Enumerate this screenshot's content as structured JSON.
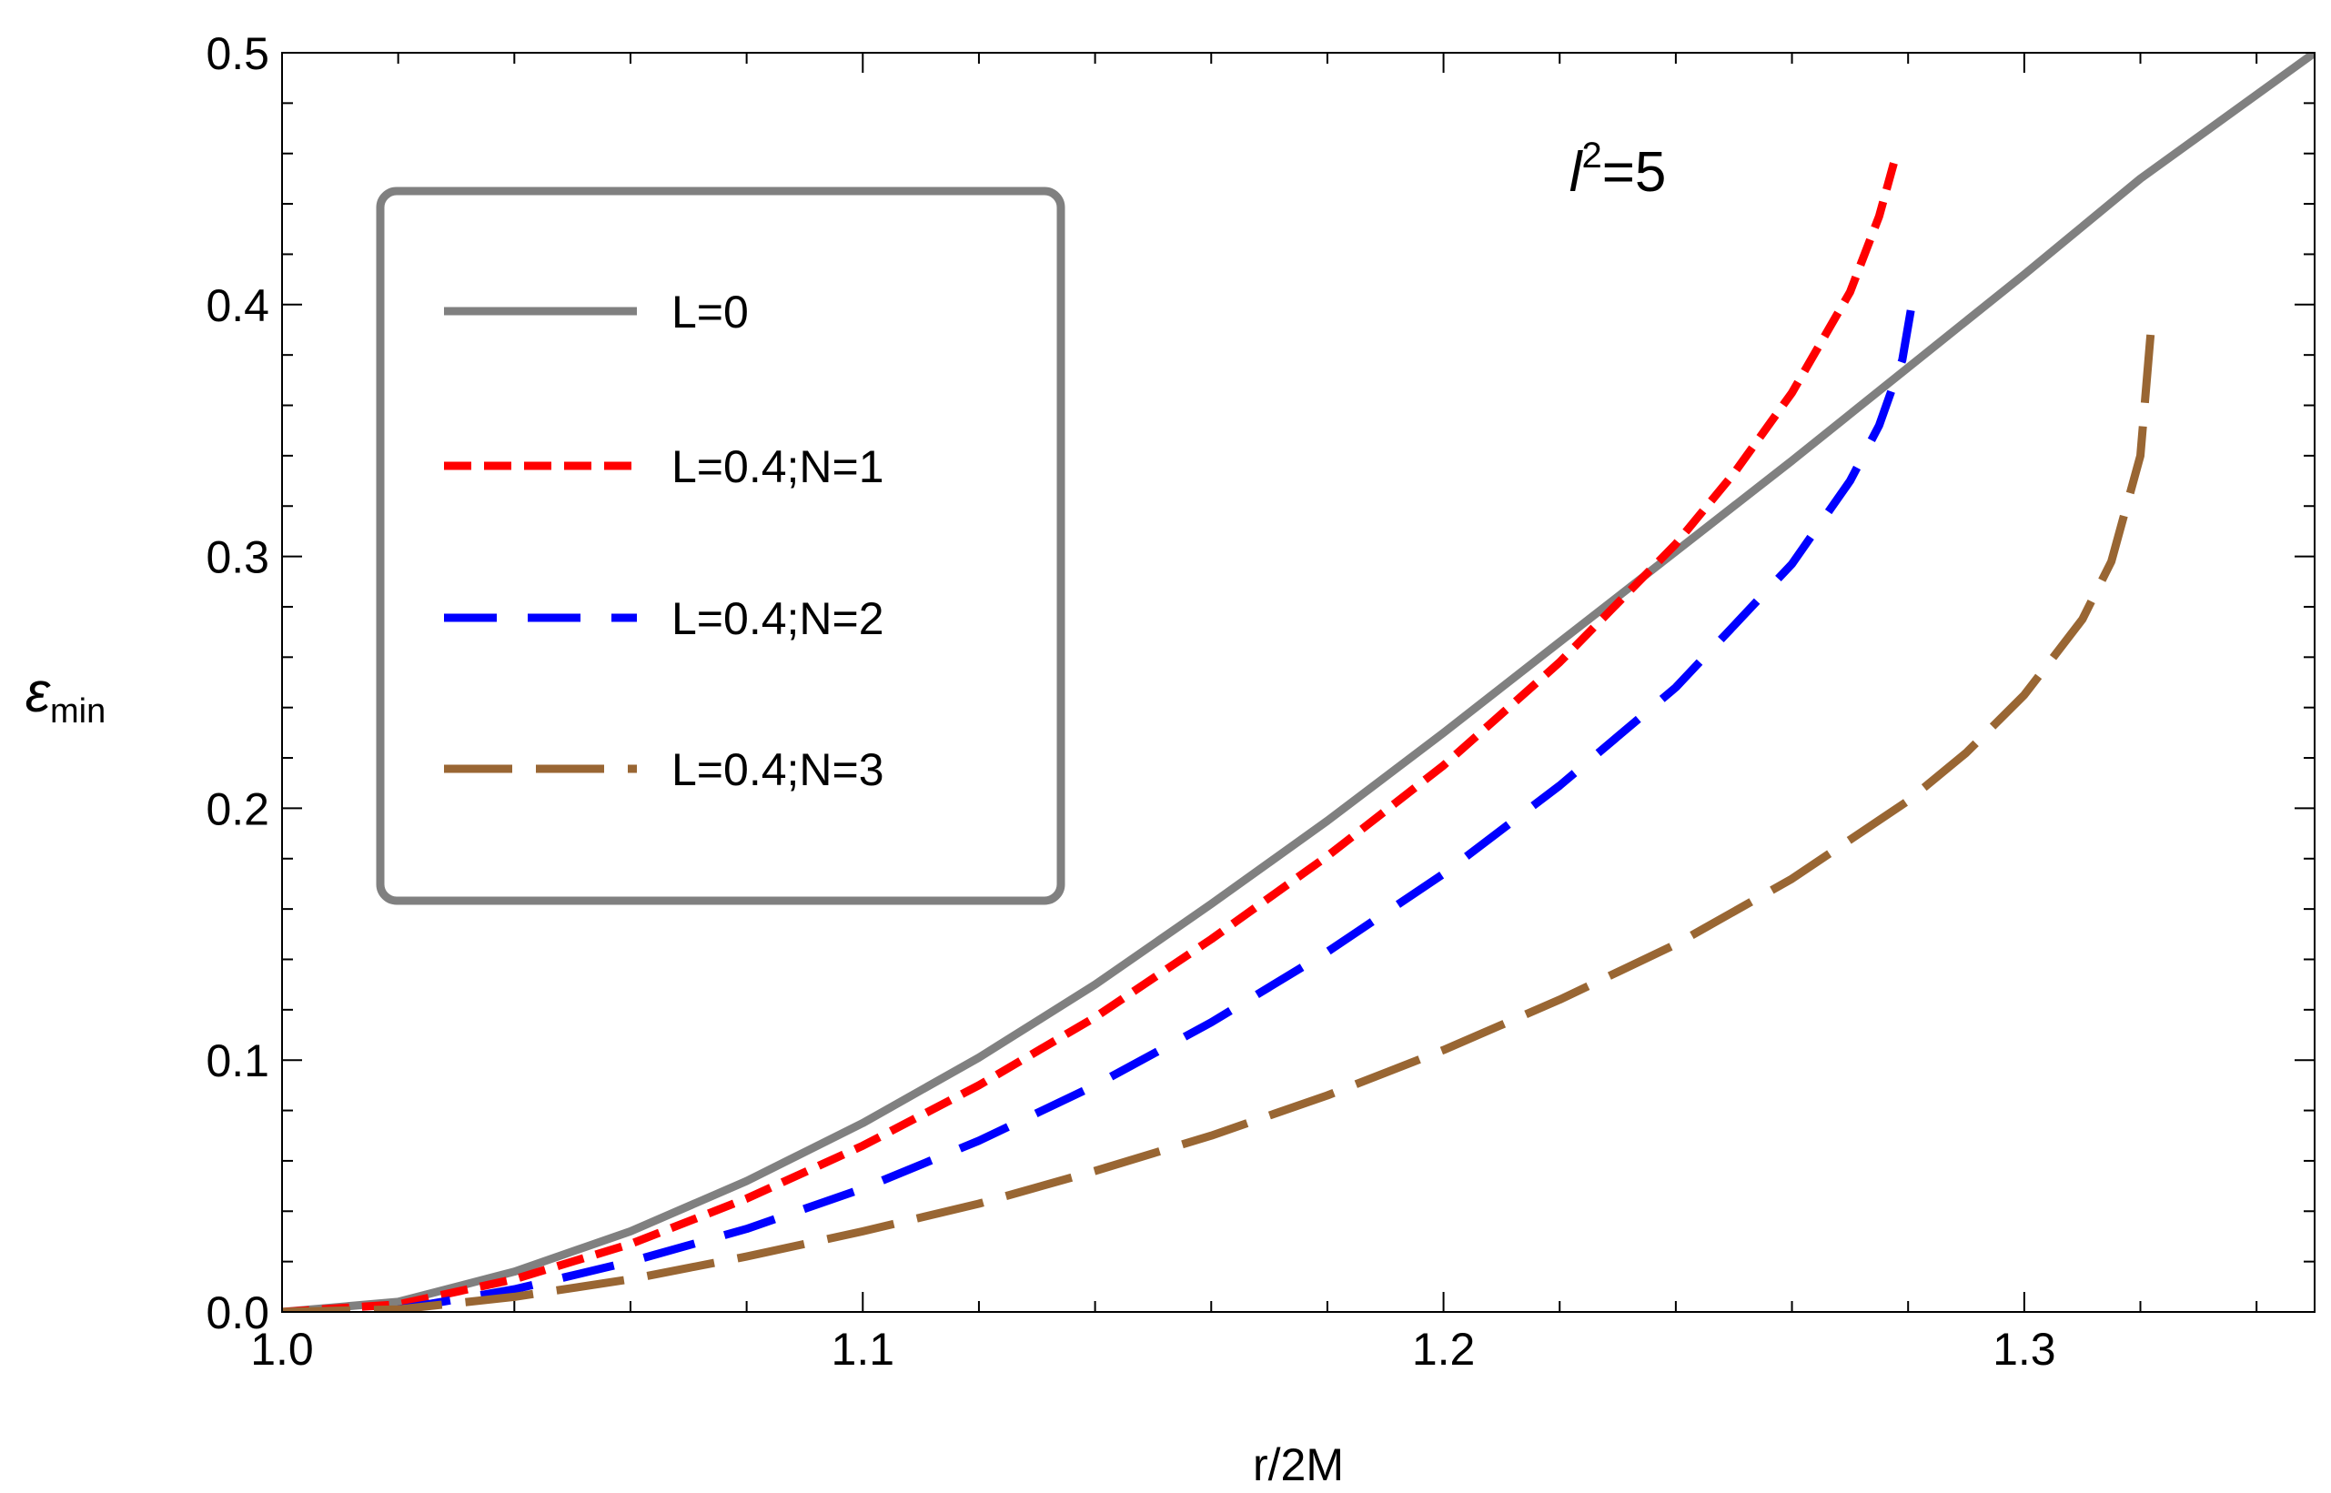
{
  "chart_data": {
    "type": "line",
    "title": "",
    "xlabel": "r/2M",
    "ylabel": {
      "main": "ε",
      "sub": "min"
    },
    "xlim": [
      1.0,
      1.35
    ],
    "ylim": [
      0.0,
      0.5
    ],
    "x_ticks": [
      {
        "value": 1.0,
        "label": "1.0"
      },
      {
        "value": 1.1,
        "label": "1.1"
      },
      {
        "value": 1.2,
        "label": "1.2"
      },
      {
        "value": 1.3,
        "label": "1.3"
      }
    ],
    "y_ticks": [
      {
        "value": 0.0,
        "label": "0.0"
      },
      {
        "value": 0.1,
        "label": "0.1"
      },
      {
        "value": 0.2,
        "label": "0.2"
      },
      {
        "value": 0.3,
        "label": "0.3"
      },
      {
        "value": 0.4,
        "label": "0.4"
      },
      {
        "value": 0.5,
        "label": "0.5"
      }
    ],
    "x_minor_step": 0.02,
    "y_minor_step": 0.02,
    "grid": false,
    "legend_position": "top-left",
    "annotation": {
      "text": "l",
      "sup": "2",
      "rest": "=5",
      "x": 1.23,
      "y": 0.445
    },
    "series": [
      {
        "name": "L=0",
        "color": "#808080",
        "dash": "solid",
        "x": [
          1.0,
          1.02,
          1.04,
          1.06,
          1.08,
          1.1,
          1.12,
          1.14,
          1.16,
          1.18,
          1.2,
          1.22,
          1.24,
          1.26,
          1.28,
          1.3,
          1.32,
          1.35
        ],
        "y": [
          0.0,
          0.004,
          0.016,
          0.032,
          0.052,
          0.075,
          0.101,
          0.13,
          0.162,
          0.195,
          0.23,
          0.266,
          0.302,
          0.338,
          0.375,
          0.412,
          0.45,
          0.5
        ]
      },
      {
        "name": "L=0.4;N=1",
        "color": "#ff0000",
        "dash": "short",
        "x": [
          1.0,
          1.02,
          1.04,
          1.06,
          1.08,
          1.1,
          1.12,
          1.14,
          1.16,
          1.18,
          1.2,
          1.22,
          1.24,
          1.25,
          1.26,
          1.27,
          1.275,
          1.278
        ],
        "y": [
          0.0,
          0.003,
          0.013,
          0.027,
          0.045,
          0.066,
          0.09,
          0.117,
          0.148,
          0.181,
          0.217,
          0.258,
          0.305,
          0.333,
          0.365,
          0.405,
          0.435,
          0.46
        ]
      },
      {
        "name": "L=0.4;N=2",
        "color": "#0000ff",
        "dash": "medium",
        "x": [
          1.02,
          1.04,
          1.06,
          1.08,
          1.1,
          1.12,
          1.14,
          1.16,
          1.18,
          1.2,
          1.22,
          1.24,
          1.26,
          1.27,
          1.275,
          1.279,
          1.281
        ],
        "y": [
          0.001,
          0.009,
          0.02,
          0.033,
          0.049,
          0.068,
          0.09,
          0.115,
          0.143,
          0.174,
          0.209,
          0.248,
          0.297,
          0.33,
          0.352,
          0.378,
          0.405
        ]
      },
      {
        "name": "L=0.4;N=3",
        "color": "#996633",
        "dash": "long",
        "x": [
          1.0,
          1.02,
          1.04,
          1.06,
          1.08,
          1.1,
          1.12,
          1.14,
          1.16,
          1.18,
          1.2,
          1.22,
          1.24,
          1.26,
          1.28,
          1.29,
          1.3,
          1.31,
          1.315,
          1.32,
          1.322
        ],
        "y": [
          0.0,
          0.001,
          0.006,
          0.013,
          0.022,
          0.032,
          0.043,
          0.056,
          0.07,
          0.086,
          0.104,
          0.124,
          0.146,
          0.172,
          0.203,
          0.222,
          0.245,
          0.275,
          0.298,
          0.34,
          0.395
        ]
      }
    ]
  }
}
